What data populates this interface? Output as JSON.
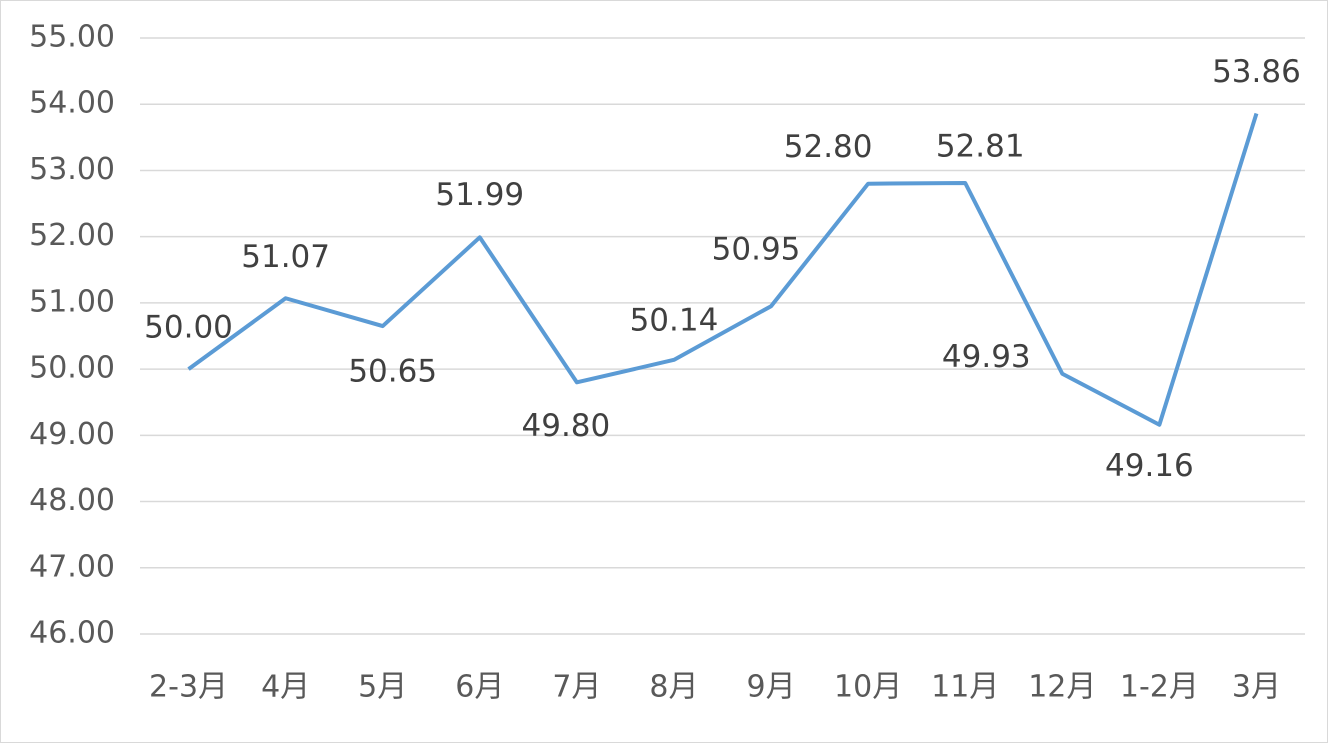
{
  "chart_data": {
    "type": "line",
    "categories": [
      "2-3月",
      "4月",
      "5月",
      "6月",
      "7月",
      "8月",
      "9月",
      "10月",
      "11月",
      "12月",
      "1-2月",
      "3月"
    ],
    "series": [
      {
        "color": "#5b9bd5",
        "values": [
          50.0,
          51.07,
          50.65,
          51.99,
          49.8,
          50.14,
          50.95,
          52.8,
          52.81,
          49.93,
          49.16,
          53.86
        ],
        "value_labels": [
          "50.00",
          "51.07",
          "50.65",
          "51.99",
          "49.80",
          "50.14",
          "50.95",
          "52.80",
          "52.81",
          "49.93",
          "49.16",
          "53.86"
        ]
      }
    ],
    "ylim": [
      46,
      55
    ],
    "yticks": [
      {
        "value": 46,
        "label": "46.00"
      },
      {
        "value": 47,
        "label": "47.00"
      },
      {
        "value": 48,
        "label": "48.00"
      },
      {
        "value": 49,
        "label": "49.00"
      },
      {
        "value": 50,
        "label": "50.00"
      },
      {
        "value": 51,
        "label": "51.00"
      },
      {
        "value": 52,
        "label": "52.00"
      },
      {
        "value": 53,
        "label": "53.00"
      },
      {
        "value": 54,
        "label": "54.00"
      },
      {
        "value": 55,
        "label": "55.00"
      }
    ],
    "grid": true
  }
}
